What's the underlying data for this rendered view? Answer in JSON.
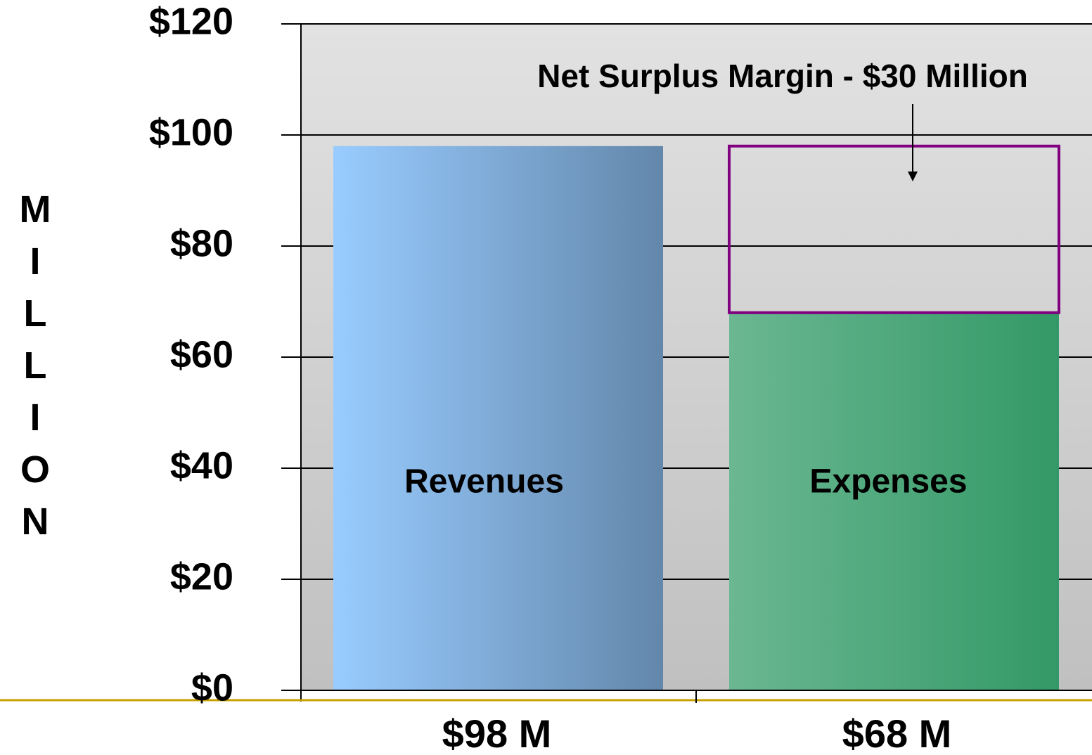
{
  "chart_data": {
    "type": "bar",
    "y_label": "MILLION",
    "categories": [
      "Revenues",
      "Expenses"
    ],
    "values": [
      98,
      68
    ],
    "value_labels": [
      "$98 M",
      "$68 M"
    ],
    "gradients": [
      [
        "#99ccff",
        "#6387ab"
      ],
      [
        "#6bb792",
        "#339966"
      ]
    ],
    "surplus": {
      "label": "Net Surplus Margin - $30 Million",
      "value": 30,
      "on_category": "Expenses",
      "color": "#800080"
    },
    "ylim": [
      0,
      120
    ],
    "yticks": [
      {
        "value": 0,
        "label": "$0"
      },
      {
        "value": 20,
        "label": "$20"
      },
      {
        "value": 40,
        "label": "$40"
      },
      {
        "value": 60,
        "label": "$60"
      },
      {
        "value": 80,
        "label": "$80"
      },
      {
        "value": 100,
        "label": "$100"
      },
      {
        "value": 120,
        "label": "$120"
      }
    ],
    "grid": true
  }
}
